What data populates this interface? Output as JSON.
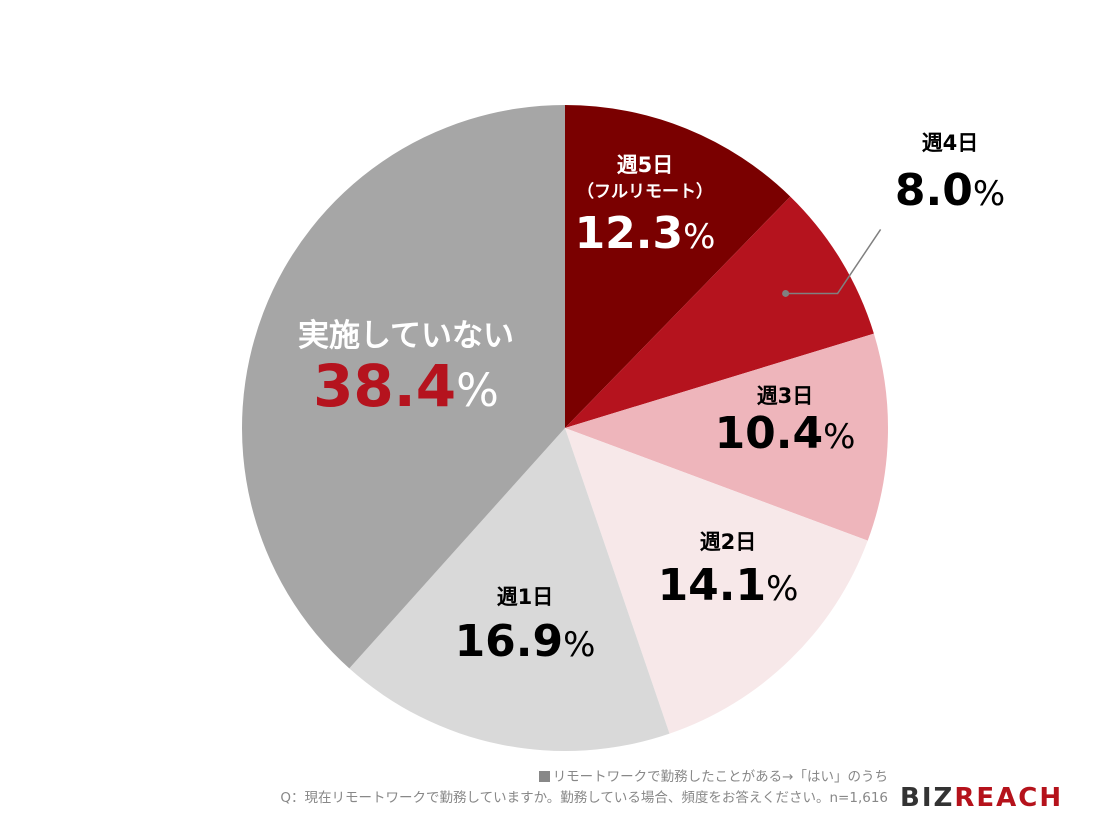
{
  "chart_data": {
    "type": "pie",
    "start_angle": "12 o'clock",
    "direction": "clockwise",
    "slices": [
      {
        "label": "週5日",
        "sublabel": "（フルリモート）",
        "value": 12.3,
        "value_text": "12.3",
        "color": "#7a0000",
        "label_color": "#ffffff"
      },
      {
        "label": "週4日",
        "value": 8.0,
        "value_text": "8.0",
        "color": "#b5131e",
        "label_color": "#000000",
        "callout": true
      },
      {
        "label": "週3日",
        "value": 10.4,
        "value_text": "10.4",
        "color": "#eeb5bb",
        "label_color": "#000000"
      },
      {
        "label": "週2日",
        "value": 14.1,
        "value_text": "14.1",
        "color": "#f7e8e9",
        "label_color": "#000000"
      },
      {
        "label": "週1日",
        "value": 16.9,
        "value_text": "16.9",
        "color": "#d9d9d9",
        "label_color": "#000000"
      },
      {
        "label": "実施していない",
        "value": 38.4,
        "value_text": "38.4",
        "color": "#a6a6a6",
        "label_color": "#ffffff",
        "value_color": "#b5131e"
      }
    ],
    "unit": "%"
  },
  "footer": {
    "note": "リモートワークで勤務したことがある→「はい」のうち",
    "question": "Q：現在リモートワークで勤務していますか。勤務している場合、頻度をお答えください。n=1,616"
  },
  "logo": {
    "main": "BIZ",
    "accent": "REACH"
  }
}
